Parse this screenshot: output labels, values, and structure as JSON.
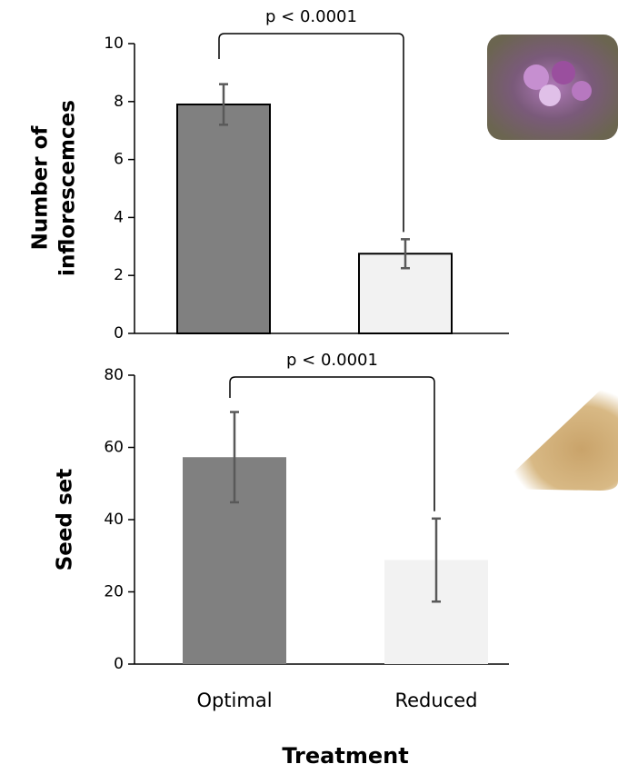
{
  "chart_data": [
    {
      "type": "bar",
      "ylabel": [
        "Number of",
        "inflorescemces"
      ],
      "annotation": "p < 0.0001",
      "categories": [
        null,
        null
      ],
      "values": [
        7.9,
        2.75
      ],
      "errors": [
        0.7,
        0.5
      ],
      "colors": [
        "#808080",
        "#f2f2f2"
      ],
      "outline": true,
      "ylim": [
        0,
        10
      ],
      "yticks": [
        0,
        2,
        4,
        6,
        8,
        10
      ]
    },
    {
      "type": "bar",
      "ylabel": [
        "Seed set"
      ],
      "xlabel": "Treatment",
      "annotation": "p < 0.0001",
      "categories": [
        "Optimal",
        "Reduced"
      ],
      "values": [
        57.3,
        28.8
      ],
      "errors": [
        12.5,
        11.5
      ],
      "colors": [
        "#808080",
        "#f2f2f2"
      ],
      "outline": false,
      "ylim": [
        0,
        80
      ],
      "yticks": [
        0,
        20,
        40,
        60,
        80
      ]
    }
  ]
}
